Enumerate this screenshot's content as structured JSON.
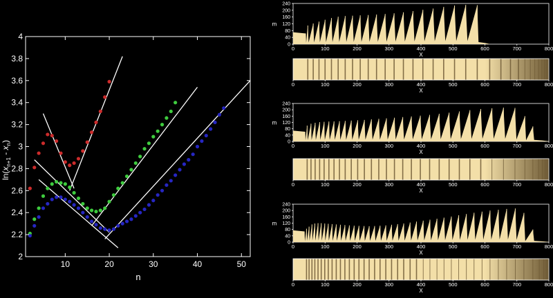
{
  "colors": {
    "background": "#000000",
    "main_plot_bg": "#ffffff",
    "sand": "#f3dfa8",
    "stripe_dark": "#6f5b36",
    "fit_line": "#ffffff",
    "red": "#cc2b2b",
    "green": "#3ecb3e",
    "blue": "#2626c2"
  },
  "chart_data": [
    {
      "type": "scatter",
      "title": "",
      "xlabel": "n",
      "ylabel_parts": [
        "ln(",
        "x",
        "n+1",
        " - ",
        "x",
        "n",
        ")"
      ],
      "xlim": [
        1,
        52
      ],
      "ylim": [
        2,
        4
      ],
      "xticks": [
        10,
        20,
        30,
        40,
        50
      ],
      "yticks": [
        2,
        2.2,
        2.4,
        2.6,
        2.8,
        3,
        3.2,
        3.4,
        3.6,
        3.8,
        4
      ],
      "ytick_labels": [
        "2",
        "2.2",
        "2.4",
        "2.6",
        "2.8",
        "3",
        "3.2",
        "3.4",
        "3.6",
        "3.8",
        "4"
      ],
      "series": [
        {
          "color_key": "red",
          "x": [
            2,
            3,
            4,
            5,
            6,
            7,
            8,
            9,
            10,
            11,
            12,
            13,
            14,
            15,
            16,
            17,
            18,
            19,
            20
          ],
          "y": [
            2.62,
            2.81,
            2.94,
            3.03,
            3.11,
            3.1,
            3.05,
            2.94,
            2.86,
            2.83,
            2.85,
            2.89,
            2.96,
            3.04,
            3.13,
            3.22,
            3.32,
            3.45,
            3.59
          ]
        },
        {
          "color_key": "green",
          "x": [
            2,
            3,
            4,
            5,
            6,
            7,
            8,
            9,
            10,
            11,
            12,
            13,
            14,
            15,
            16,
            17,
            18,
            19,
            20,
            21,
            22,
            23,
            24,
            25,
            26,
            27,
            28,
            29,
            30,
            31,
            32,
            33,
            34,
            35
          ],
          "y": [
            2.21,
            2.34,
            2.44,
            2.55,
            2.62,
            2.66,
            2.68,
            2.67,
            2.66,
            2.63,
            2.58,
            2.53,
            2.48,
            2.44,
            2.42,
            2.41,
            2.42,
            2.44,
            2.5,
            2.56,
            2.62,
            2.67,
            2.73,
            2.79,
            2.85,
            2.91,
            2.98,
            3.03,
            3.09,
            3.14,
            3.2,
            3.26,
            3.32,
            3.4
          ]
        },
        {
          "color_key": "blue",
          "x": [
            2,
            3,
            4,
            5,
            6,
            7,
            8,
            9,
            10,
            11,
            12,
            13,
            14,
            15,
            16,
            17,
            18,
            19,
            20,
            21,
            22,
            23,
            24,
            25,
            26,
            27,
            28,
            29,
            30,
            31,
            32,
            33,
            34,
            35,
            36,
            37,
            38,
            39,
            40,
            41,
            42,
            43,
            44,
            45,
            46
          ],
          "y": [
            2.19,
            2.28,
            2.36,
            2.44,
            2.48,
            2.52,
            2.54,
            2.54,
            2.52,
            2.5,
            2.47,
            2.44,
            2.4,
            2.36,
            2.32,
            2.29,
            2.26,
            2.25,
            2.24,
            2.25,
            2.28,
            2.3,
            2.32,
            2.34,
            2.37,
            2.4,
            2.43,
            2.47,
            2.51,
            2.56,
            2.6,
            2.65,
            2.69,
            2.74,
            2.79,
            2.84,
            2.88,
            2.93,
            3.0,
            3.05,
            3.1,
            3.16,
            3.22,
            3.29,
            3.35
          ]
        }
      ],
      "fit_lines": [
        {
          "x": [
            5,
            12
          ],
          "y": [
            3.3,
            2.62
          ]
        },
        {
          "x": [
            11,
            23
          ],
          "y": [
            2.6,
            3.82
          ]
        },
        {
          "x": [
            3,
            20
          ],
          "y": [
            2.88,
            2.22
          ]
        },
        {
          "x": [
            16,
            40
          ],
          "y": [
            2.28,
            3.54
          ]
        },
        {
          "x": [
            4,
            22
          ],
          "y": [
            2.7,
            2.08
          ]
        },
        {
          "x": [
            19,
            52
          ],
          "y": [
            2.16,
            3.6
          ]
        }
      ]
    },
    {
      "type": "area",
      "xlabel": "X",
      "ylabel": "m",
      "xlim": [
        0,
        800
      ],
      "ylim": [
        0,
        240
      ],
      "xticks": [
        0,
        100,
        200,
        300,
        400,
        500,
        600,
        700,
        800
      ],
      "yticks": [
        0,
        40,
        80,
        120,
        160,
        200,
        240
      ],
      "plateau": {
        "x_end": 40,
        "value": 70
      },
      "peaks": {
        "x": [
          46,
          63,
          81,
          100,
          120,
          141,
          163,
          186,
          210,
          235,
          261,
          288,
          316,
          345,
          375,
          406,
          438,
          471,
          505,
          540,
          576
        ],
        "m": [
          110,
          122,
          133,
          144,
          154,
          162,
          166,
          168,
          170,
          172,
          175,
          178,
          182,
          188,
          195,
          203,
          210,
          220,
          228,
          232,
          230
        ]
      },
      "tail": {
        "x": 580,
        "value": 12
      },
      "end_x": 615
    },
    {
      "type": "heatmap",
      "xlabel": "X",
      "xlim": [
        0,
        800
      ],
      "xticks": [
        0,
        100,
        200,
        300,
        400,
        500,
        600,
        700,
        800
      ],
      "band_x": [
        46,
        63,
        81,
        100,
        120,
        141,
        163,
        186,
        210,
        235,
        261,
        288,
        316,
        345,
        375,
        406,
        438,
        471,
        505,
        540,
        576,
        615,
        650,
        680,
        705,
        725,
        742,
        756,
        768,
        778,
        786,
        792,
        797
      ]
    },
    {
      "type": "area",
      "xlabel": "X",
      "ylabel": "m",
      "xlim": [
        0,
        800
      ],
      "ylim": [
        0,
        240
      ],
      "xticks": [
        0,
        100,
        200,
        300,
        400,
        500,
        600,
        700,
        800
      ],
      "yticks": [
        0,
        40,
        80,
        120,
        160,
        200,
        240
      ],
      "plateau": {
        "x_end": 38,
        "value": 68
      },
      "peaks": {
        "x": [
          44,
          56,
          69,
          83,
          97,
          112,
          128,
          145,
          163,
          182,
          202,
          223,
          245,
          268,
          292,
          317,
          343,
          370,
          398,
          427,
          457,
          488,
          520,
          553,
          587,
          622,
          658,
          694,
          725,
          750
        ],
        "m": [
          100,
          112,
          118,
          122,
          124,
          126,
          127,
          128,
          130,
          132,
          134,
          136,
          140,
          143,
          146,
          150,
          154,
          158,
          163,
          168,
          175,
          182,
          190,
          198,
          205,
          210,
          214,
          212,
          160,
          95
        ]
      },
      "tail": {
        "x": 760,
        "value": 10
      },
      "end_x": 800
    },
    {
      "type": "heatmap",
      "xlabel": "X",
      "xlim": [
        0,
        800
      ],
      "xticks": [
        0,
        100,
        200,
        300,
        400,
        500,
        600,
        700,
        800
      ],
      "band_x": [
        44,
        56,
        69,
        83,
        97,
        112,
        128,
        145,
        163,
        182,
        202,
        223,
        245,
        268,
        292,
        317,
        343,
        370,
        398,
        427,
        457,
        488,
        520,
        553,
        587,
        622,
        658,
        694,
        725,
        750,
        768,
        780,
        788,
        794,
        798
      ]
    },
    {
      "type": "area",
      "xlabel": "X",
      "ylabel": "m",
      "xlim": [
        0,
        800
      ],
      "ylim": [
        0,
        240
      ],
      "xticks": [
        0,
        100,
        200,
        300,
        400,
        500,
        600,
        700,
        800
      ],
      "yticks": [
        0,
        40,
        80,
        120,
        160,
        200,
        240
      ],
      "plateau": {
        "x_end": 36,
        "value": 75
      },
      "peaks": {
        "x": [
          42,
          50,
          59,
          68,
          78,
          88,
          99,
          110,
          122,
          135,
          148,
          162,
          176,
          191,
          206,
          222,
          238,
          255,
          272,
          290,
          308,
          327,
          346,
          366,
          386,
          407,
          428,
          450,
          472,
          495,
          518,
          542,
          566,
          591,
          616,
          642,
          668,
          695,
          722,
          750
        ],
        "m": [
          85,
          98,
          112,
          118,
          120,
          120,
          118,
          116,
          114,
          112,
          110,
          108,
          106,
          104,
          103,
          102,
          101,
          102,
          104,
          106,
          110,
          114,
          118,
          124,
          130,
          136,
          142,
          148,
          155,
          162,
          170,
          178,
          186,
          193,
          200,
          205,
          210,
          213,
          185,
          80
        ]
      },
      "tail": {
        "x": 760,
        "value": 8
      },
      "end_x": 800
    },
    {
      "type": "heatmap",
      "xlabel": "X",
      "xlim": [
        0,
        800
      ],
      "xticks": [
        0,
        100,
        200,
        300,
        400,
        500,
        600,
        700,
        800
      ],
      "band_x": [
        42,
        50,
        59,
        68,
        78,
        88,
        99,
        110,
        122,
        135,
        148,
        162,
        176,
        191,
        206,
        222,
        238,
        255,
        272,
        290,
        308,
        327,
        346,
        366,
        386,
        407,
        428,
        450,
        472,
        495,
        518,
        542,
        566,
        591,
        616,
        642,
        668,
        695,
        722,
        750,
        770,
        784,
        792,
        797
      ]
    }
  ]
}
